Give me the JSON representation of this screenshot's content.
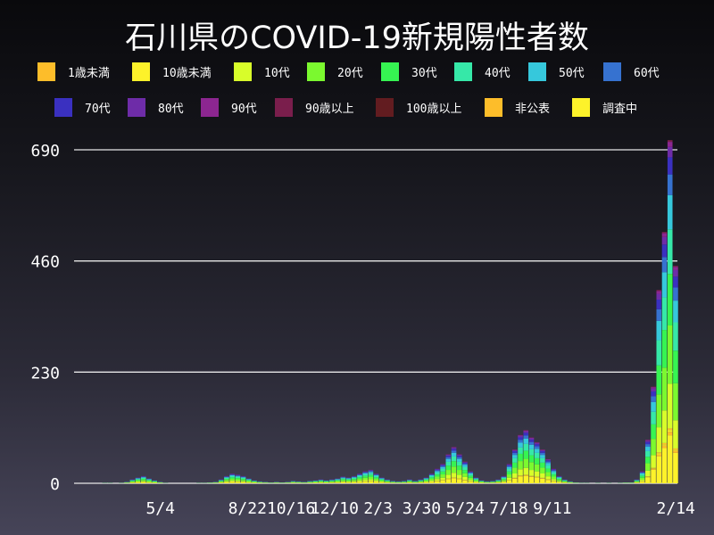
{
  "chart_data": {
    "type": "bar",
    "stacked": true,
    "title": "石川県のCOVID-19新規陽性者数",
    "xlabel": "",
    "ylabel": "",
    "ylim": [
      0,
      690
    ],
    "yticks": [
      0,
      230,
      460,
      690
    ],
    "xticks": [
      {
        "date": "2020-05-04",
        "label": "5/4"
      },
      {
        "date": "2020-08-22",
        "label": "8/22"
      },
      {
        "date": "2020-10-16",
        "label": "10/16"
      },
      {
        "date": "2020-12-10",
        "label": "12/10"
      },
      {
        "date": "2021-02-03",
        "label": "2/3"
      },
      {
        "date": "2021-03-30",
        "label": "3/30"
      },
      {
        "date": "2021-05-24",
        "label": "5/24"
      },
      {
        "date": "2021-07-18",
        "label": "7/18"
      },
      {
        "date": "2021-09-11",
        "label": "9/11"
      },
      {
        "date": "2022-02-14",
        "label": "2/14"
      }
    ],
    "xlim": [
      "2020-01-16",
      "2022-02-16"
    ],
    "grid": true,
    "legend_placement": "top",
    "legend": [
      {
        "name": "1歳未満",
        "color": "#fdbd2a"
      },
      {
        "name": "10歳未満",
        "color": "#fdf22a"
      },
      {
        "name": "10代",
        "color": "#d8fd2a"
      },
      {
        "name": "20代",
        "color": "#7bf92f"
      },
      {
        "name": "30代",
        "color": "#36f452"
      },
      {
        "name": "40代",
        "color": "#36e8a8"
      },
      {
        "name": "50代",
        "color": "#36c8dc"
      },
      {
        "name": "60代",
        "color": "#3672d0"
      },
      {
        "name": "70代",
        "color": "#3a30c0"
      },
      {
        "name": "80代",
        "color": "#6e2ca8"
      },
      {
        "name": "90代",
        "color": "#8c2690"
      },
      {
        "name": "90歳以上",
        "color": "#7a1e4c"
      },
      {
        "name": "100歳以上",
        "color": "#621c20"
      },
      {
        "name": "非公表",
        "color": "#fdbd2a"
      },
      {
        "name": "調査中",
        "color": "#fdf22a"
      }
    ],
    "x": [
      "2020-01-27",
      "2020-02-03",
      "2020-02-10",
      "2020-02-17",
      "2020-02-24",
      "2020-03-02",
      "2020-03-09",
      "2020-03-16",
      "2020-03-23",
      "2020-03-30",
      "2020-04-06",
      "2020-04-13",
      "2020-04-20",
      "2020-04-27",
      "2020-05-04",
      "2020-05-11",
      "2020-05-18",
      "2020-05-25",
      "2020-06-01",
      "2020-06-08",
      "2020-06-15",
      "2020-06-22",
      "2020-06-29",
      "2020-07-06",
      "2020-07-13",
      "2020-07-20",
      "2020-07-27",
      "2020-08-03",
      "2020-08-10",
      "2020-08-17",
      "2020-08-24",
      "2020-08-31",
      "2020-09-07",
      "2020-09-14",
      "2020-09-21",
      "2020-09-28",
      "2020-10-05",
      "2020-10-12",
      "2020-10-19",
      "2020-10-26",
      "2020-11-02",
      "2020-11-09",
      "2020-11-16",
      "2020-11-23",
      "2020-11-30",
      "2020-12-07",
      "2020-12-14",
      "2020-12-21",
      "2020-12-28",
      "2021-01-04",
      "2021-01-11",
      "2021-01-18",
      "2021-01-25",
      "2021-02-01",
      "2021-02-08",
      "2021-02-15",
      "2021-02-22",
      "2021-03-01",
      "2021-03-08",
      "2021-03-15",
      "2021-03-22",
      "2021-03-29",
      "2021-04-05",
      "2021-04-12",
      "2021-04-19",
      "2021-04-26",
      "2021-05-03",
      "2021-05-10",
      "2021-05-17",
      "2021-05-24",
      "2021-05-31",
      "2021-06-07",
      "2021-06-14",
      "2021-06-21",
      "2021-06-28",
      "2021-07-05",
      "2021-07-12",
      "2021-07-19",
      "2021-07-26",
      "2021-08-02",
      "2021-08-09",
      "2021-08-16",
      "2021-08-23",
      "2021-08-30",
      "2021-09-06",
      "2021-09-13",
      "2021-09-20",
      "2021-09-27",
      "2021-10-04",
      "2021-10-11",
      "2021-10-18",
      "2021-10-25",
      "2021-11-01",
      "2021-11-08",
      "2021-11-15",
      "2021-11-22",
      "2021-11-29",
      "2021-12-06",
      "2021-12-13",
      "2021-12-20",
      "2021-12-27",
      "2022-01-03",
      "2022-01-10",
      "2022-01-17",
      "2022-01-24",
      "2022-01-31",
      "2022-02-07",
      "2022-02-14"
    ],
    "values": [
      0,
      0,
      0,
      0,
      1,
      1,
      0,
      1,
      3,
      8,
      12,
      15,
      10,
      6,
      3,
      1,
      0,
      0,
      0,
      0,
      0,
      1,
      1,
      2,
      3,
      8,
      15,
      20,
      18,
      15,
      10,
      6,
      4,
      3,
      2,
      3,
      2,
      3,
      5,
      4,
      3,
      5,
      6,
      8,
      6,
      8,
      10,
      14,
      12,
      15,
      20,
      25,
      28,
      20,
      12,
      8,
      5,
      4,
      5,
      8,
      5,
      8,
      12,
      20,
      30,
      40,
      60,
      75,
      60,
      45,
      25,
      12,
      6,
      4,
      5,
      8,
      15,
      40,
      70,
      100,
      110,
      95,
      85,
      70,
      50,
      30,
      15,
      8,
      4,
      2,
      1,
      1,
      0,
      1,
      0,
      1,
      0,
      1,
      2,
      2,
      8,
      25,
      90,
      200,
      400,
      520,
      710,
      450
    ]
  }
}
